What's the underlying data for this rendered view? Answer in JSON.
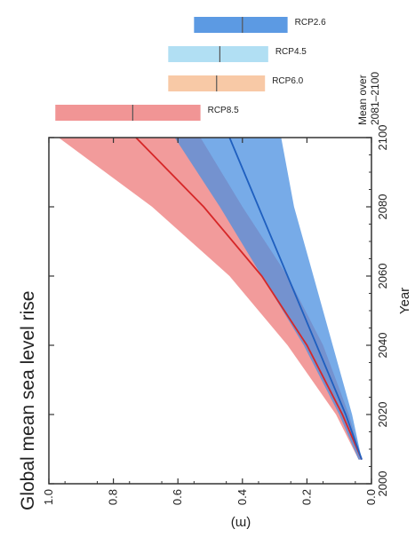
{
  "chart_data": {
    "type": "area",
    "title": "Global mean sea level rise",
    "xlabel": "Year",
    "ylabel": "(m)",
    "xlim": [
      2000,
      2100
    ],
    "ylim": [
      0.0,
      1.0
    ],
    "x_ticks": [
      "2000",
      "2020",
      "2040",
      "2060",
      "2080",
      "2100"
    ],
    "y_ticks": [
      "0.0",
      "0.2",
      "0.4",
      "0.6",
      "0.8",
      "1.0"
    ],
    "grid": false,
    "series": [
      {
        "name": "RCP8.5",
        "color": "#d62728",
        "fill_color": "#f08a8a",
        "x": [
          2007,
          2020,
          2040,
          2060,
          2080,
          2100
        ],
        "mean": [
          0.03,
          0.09,
          0.2,
          0.34,
          0.52,
          0.73
        ],
        "lower": [
          0.03,
          0.07,
          0.15,
          0.26,
          0.4,
          0.53
        ],
        "upper": [
          0.04,
          0.11,
          0.26,
          0.44,
          0.68,
          0.97
        ]
      },
      {
        "name": "RCP2.6",
        "color": "#1f5fbf",
        "fill_color": "#4a8fe0",
        "x": [
          2007,
          2020,
          2040,
          2060,
          2080,
          2100
        ],
        "mean": [
          0.03,
          0.08,
          0.17,
          0.26,
          0.35,
          0.44
        ],
        "lower": [
          0.03,
          0.06,
          0.12,
          0.18,
          0.24,
          0.28
        ],
        "upper": [
          0.04,
          0.1,
          0.21,
          0.34,
          0.47,
          0.61
        ]
      }
    ],
    "mean_panel": {
      "title_lines": [
        "Mean over",
        "2081–2100"
      ],
      "bars": [
        {
          "name": "RCP8.5",
          "low": 0.53,
          "mean": 0.74,
          "high": 0.98,
          "color": "#f08a8a"
        },
        {
          "name": "RCP6.0",
          "low": 0.33,
          "mean": 0.48,
          "high": 0.63,
          "color": "#f7c39c"
        },
        {
          "name": "RCP4.5",
          "low": 0.32,
          "mean": 0.47,
          "high": 0.63,
          "color": "#a9dcf2"
        },
        {
          "name": "RCP2.6",
          "low": 0.26,
          "mean": 0.4,
          "high": 0.55,
          "color": "#4a8fe0"
        }
      ]
    }
  }
}
